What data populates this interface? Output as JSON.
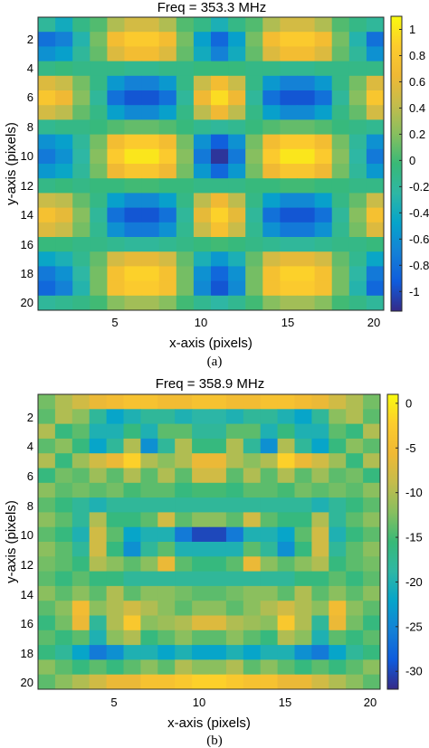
{
  "chart_data": [
    {
      "type": "heatmap",
      "title": "Freq = 353.3 MHz",
      "xlabel": "x-axis (pixels)",
      "ylabel": "y-axis (pixels)",
      "caption": "(a)",
      "xlim": [
        0.5,
        20.5
      ],
      "ylim": [
        0.5,
        20.5
      ],
      "xticks": [
        "5",
        "10",
        "15",
        "20"
      ],
      "yticks": [
        "2",
        "4",
        "6",
        "8",
        "10",
        "12",
        "14",
        "16",
        "18",
        "20"
      ],
      "colorbar": {
        "range": [
          -1.15,
          1.1
        ],
        "ticks": [
          "1",
          "0.8",
          "0.6",
          "0.4",
          "0.2",
          "0",
          "-0.2",
          "-0.4",
          "-0.6",
          "-0.8",
          "-1"
        ]
      },
      "colormap": "parula",
      "values": [
        [
          -0.2,
          -0.4,
          -0.1,
          0.05,
          0.35,
          0.5,
          0.5,
          0.35,
          0.05,
          -0.1,
          -0.35,
          -0.1,
          0.05,
          0.35,
          0.5,
          0.5,
          0.35,
          0.05,
          -0.1,
          -0.2
        ],
        [
          -0.8,
          -0.7,
          -0.3,
          0.15,
          0.7,
          0.85,
          0.85,
          0.7,
          0.15,
          -0.5,
          -0.85,
          -0.5,
          0.15,
          0.7,
          0.85,
          0.85,
          0.7,
          0.15,
          -0.3,
          -0.8
        ],
        [
          -0.6,
          -0.5,
          -0.2,
          0.1,
          0.55,
          0.7,
          0.7,
          0.55,
          0.1,
          -0.4,
          -0.7,
          -0.4,
          0.1,
          0.55,
          0.7,
          0.7,
          0.55,
          0.1,
          -0.2,
          -0.6
        ],
        [
          -0.1,
          -0.05,
          -0.1,
          -0.1,
          -0.1,
          -0.15,
          -0.15,
          -0.1,
          -0.1,
          -0.05,
          -0.05,
          -0.05,
          -0.1,
          -0.1,
          -0.15,
          -0.15,
          -0.1,
          -0.1,
          -0.1,
          -0.1
        ],
        [
          0.55,
          0.45,
          0.15,
          -0.1,
          -0.55,
          -0.7,
          -0.7,
          -0.55,
          -0.1,
          0.45,
          0.7,
          0.45,
          -0.1,
          -0.55,
          -0.7,
          -0.7,
          -0.55,
          -0.1,
          0.15,
          0.55
        ],
        [
          0.8,
          0.65,
          0.2,
          -0.2,
          -0.8,
          -0.95,
          -0.95,
          -0.8,
          -0.2,
          0.65,
          0.95,
          0.65,
          -0.2,
          -0.8,
          -0.95,
          -0.95,
          -0.8,
          -0.2,
          0.2,
          0.8
        ],
        [
          0.5,
          0.4,
          0.1,
          -0.1,
          -0.5,
          -0.65,
          -0.65,
          -0.5,
          -0.1,
          0.4,
          0.65,
          0.4,
          -0.1,
          -0.5,
          -0.65,
          -0.65,
          -0.5,
          -0.1,
          0.1,
          0.5
        ],
        [
          -0.15,
          -0.1,
          -0.1,
          -0.05,
          0.05,
          0.1,
          0.1,
          0.05,
          -0.05,
          -0.15,
          -0.2,
          -0.15,
          -0.05,
          0.05,
          0.1,
          0.1,
          0.05,
          -0.05,
          -0.1,
          -0.15
        ],
        [
          -0.6,
          -0.5,
          -0.2,
          0.15,
          0.7,
          0.85,
          0.85,
          0.7,
          0.15,
          -0.6,
          -0.9,
          -0.6,
          0.15,
          0.7,
          0.85,
          0.85,
          0.7,
          0.15,
          -0.2,
          -0.6
        ],
        [
          -0.75,
          -0.6,
          -0.25,
          0.2,
          0.85,
          1.0,
          1.0,
          0.85,
          0.2,
          -0.75,
          -1.1,
          -0.75,
          0.2,
          0.85,
          1.0,
          1.0,
          0.85,
          0.2,
          -0.25,
          -0.75
        ],
        [
          -0.55,
          -0.45,
          -0.2,
          0.15,
          0.65,
          0.8,
          0.8,
          0.65,
          0.15,
          -0.55,
          -0.85,
          -0.55,
          0.15,
          0.65,
          0.8,
          0.8,
          0.65,
          0.15,
          -0.2,
          -0.55
        ],
        [
          -0.1,
          -0.05,
          -0.1,
          -0.05,
          -0.05,
          0.0,
          0.0,
          -0.05,
          -0.05,
          -0.1,
          -0.1,
          -0.1,
          -0.05,
          -0.05,
          0.0,
          0.0,
          -0.05,
          -0.05,
          -0.1,
          -0.1
        ],
        [
          0.45,
          0.4,
          0.1,
          -0.1,
          -0.5,
          -0.65,
          -0.65,
          -0.5,
          -0.1,
          0.4,
          0.65,
          0.4,
          -0.1,
          -0.5,
          -0.65,
          -0.65,
          -0.5,
          -0.1,
          0.1,
          0.45
        ],
        [
          0.75,
          0.6,
          0.2,
          -0.2,
          -0.8,
          -0.95,
          -0.95,
          -0.8,
          -0.2,
          0.6,
          0.9,
          0.6,
          -0.2,
          -0.8,
          -0.95,
          -0.95,
          -0.8,
          -0.2,
          0.2,
          0.75
        ],
        [
          0.55,
          0.45,
          0.15,
          -0.15,
          -0.6,
          -0.75,
          -0.75,
          -0.6,
          -0.15,
          0.45,
          0.75,
          0.45,
          -0.15,
          -0.6,
          -0.75,
          -0.75,
          -0.6,
          -0.15,
          0.15,
          0.55
        ],
        [
          -0.05,
          -0.05,
          -0.1,
          -0.1,
          -0.15,
          -0.2,
          -0.2,
          -0.15,
          -0.1,
          -0.05,
          0.0,
          -0.05,
          -0.1,
          -0.15,
          -0.2,
          -0.2,
          -0.15,
          -0.1,
          -0.1,
          -0.05
        ],
        [
          -0.45,
          -0.35,
          -0.15,
          0.1,
          0.5,
          0.6,
          0.6,
          0.5,
          0.1,
          -0.35,
          -0.55,
          -0.35,
          0.1,
          0.5,
          0.6,
          0.6,
          0.5,
          0.1,
          -0.15,
          -0.45
        ],
        [
          -0.75,
          -0.6,
          -0.25,
          0.15,
          0.75,
          0.9,
          0.9,
          0.75,
          0.15,
          -0.6,
          -0.85,
          -0.6,
          0.15,
          0.75,
          0.9,
          0.9,
          0.75,
          0.15,
          -0.25,
          -0.75
        ],
        [
          -0.85,
          -0.7,
          -0.3,
          0.15,
          0.75,
          0.85,
          0.85,
          0.75,
          0.15,
          -0.65,
          -0.95,
          -0.65,
          0.15,
          0.75,
          0.85,
          0.85,
          0.75,
          0.15,
          -0.3,
          -0.85
        ],
        [
          -0.2,
          -0.15,
          -0.1,
          0.0,
          0.2,
          0.3,
          0.3,
          0.2,
          0.0,
          -0.15,
          -0.25,
          -0.15,
          0.0,
          0.2,
          0.3,
          0.3,
          0.2,
          0.0,
          -0.1,
          -0.2
        ]
      ]
    },
    {
      "type": "heatmap",
      "title": "Freq = 358.9 MHz",
      "xlabel": "x-axis (pixels)",
      "ylabel": "y-axis (pixels)",
      "caption": "(b)",
      "xlim": [
        0.5,
        20.5
      ],
      "ylim": [
        0.5,
        20.5
      ],
      "xticks": [
        "5",
        "10",
        "15",
        "20"
      ],
      "yticks": [
        "2",
        "4",
        "6",
        "8",
        "10",
        "12",
        "14",
        "16",
        "18",
        "20"
      ],
      "colorbar": {
        "range": [
          -32,
          1
        ],
        "ticks": [
          "0",
          "-5",
          "-10",
          "-15",
          "-20",
          "-25",
          "-30"
        ]
      },
      "colormap": "parula",
      "values": [
        [
          -13,
          -10,
          -8,
          -6,
          -5,
          -4,
          -4,
          -5,
          -5,
          -4,
          -4,
          -5,
          -5,
          -4,
          -4,
          -5,
          -6,
          -8,
          -10,
          -13
        ],
        [
          -14,
          -10,
          -12,
          -18,
          -22,
          -20,
          -18,
          -18,
          -20,
          -19,
          -19,
          -20,
          -18,
          -18,
          -20,
          -22,
          -18,
          -12,
          -10,
          -14
        ],
        [
          -10,
          -16,
          -14,
          -20,
          -20,
          -16,
          -20,
          -14,
          -14,
          -18,
          -18,
          -14,
          -14,
          -20,
          -16,
          -20,
          -20,
          -14,
          -16,
          -10
        ],
        [
          -14,
          -12,
          -16,
          -22,
          -18,
          -10,
          -24,
          -18,
          -10,
          -16,
          -16,
          -10,
          -18,
          -24,
          -10,
          -18,
          -22,
          -16,
          -12,
          -14
        ],
        [
          -10,
          -16,
          -11,
          -8,
          -6,
          -2,
          -10,
          -12,
          -10,
          -6,
          -6,
          -10,
          -12,
          -10,
          -2,
          -6,
          -8,
          -11,
          -16,
          -10
        ],
        [
          -16,
          -13,
          -14,
          -11,
          -14,
          -10,
          -14,
          -10,
          -14,
          -8,
          -8,
          -14,
          -10,
          -14,
          -10,
          -14,
          -11,
          -14,
          -13,
          -16
        ],
        [
          -12,
          -14,
          -13,
          -14,
          -13,
          -15,
          -14,
          -14,
          -16,
          -15,
          -15,
          -16,
          -14,
          -14,
          -15,
          -13,
          -14,
          -13,
          -14,
          -12
        ],
        [
          -14,
          -16,
          -18,
          -20,
          -18,
          -18,
          -18,
          -18,
          -18,
          -18,
          -18,
          -18,
          -18,
          -18,
          -18,
          -18,
          -20,
          -18,
          -16,
          -14
        ],
        [
          -12,
          -14,
          -18,
          -10,
          -16,
          -16,
          -14,
          -8,
          -14,
          -12,
          -12,
          -14,
          -8,
          -14,
          -16,
          -16,
          -10,
          -18,
          -14,
          -12
        ],
        [
          -14,
          -16,
          -20,
          -8,
          -14,
          -22,
          -20,
          -20,
          -26,
          -30,
          -30,
          -26,
          -20,
          -20,
          -22,
          -14,
          -8,
          -20,
          -16,
          -14
        ],
        [
          -12,
          -14,
          -18,
          -8,
          -16,
          -24,
          -18,
          -14,
          -20,
          -20,
          -20,
          -20,
          -14,
          -18,
          -24,
          -16,
          -8,
          -18,
          -14,
          -12
        ],
        [
          -13,
          -14,
          -16,
          -10,
          -12,
          -14,
          -12,
          -6,
          -14,
          -16,
          -16,
          -14,
          -6,
          -12,
          -14,
          -12,
          -10,
          -16,
          -14,
          -13
        ],
        [
          -14,
          -16,
          -14,
          -16,
          -16,
          -18,
          -18,
          -18,
          -18,
          -18,
          -18,
          -18,
          -18,
          -18,
          -18,
          -16,
          -16,
          -14,
          -16,
          -14
        ],
        [
          -12,
          -14,
          -12,
          -14,
          -10,
          -14,
          -12,
          -12,
          -13,
          -14,
          -14,
          -13,
          -12,
          -12,
          -14,
          -10,
          -14,
          -12,
          -14,
          -12
        ],
        [
          -14,
          -12,
          -5,
          -12,
          -10,
          -8,
          -10,
          -12,
          -14,
          -12,
          -12,
          -14,
          -12,
          -10,
          -8,
          -10,
          -12,
          -5,
          -12,
          -14
        ],
        [
          -16,
          -13,
          -6,
          -18,
          -10,
          -3,
          -12,
          -11,
          -10,
          -7,
          -7,
          -10,
          -11,
          -12,
          -3,
          -10,
          -18,
          -6,
          -13,
          -16
        ],
        [
          -14,
          -16,
          -14,
          -20,
          -12,
          -10,
          -16,
          -14,
          -12,
          -14,
          -14,
          -12,
          -14,
          -16,
          -10,
          -12,
          -20,
          -14,
          -16,
          -14
        ],
        [
          -16,
          -18,
          -22,
          -26,
          -24,
          -20,
          -20,
          -22,
          -20,
          -22,
          -22,
          -20,
          -22,
          -20,
          -20,
          -24,
          -26,
          -22,
          -18,
          -16
        ],
        [
          -12,
          -14,
          -16,
          -14,
          -16,
          -14,
          -12,
          -14,
          -10,
          -12,
          -12,
          -10,
          -14,
          -12,
          -14,
          -16,
          -14,
          -16,
          -14,
          -12
        ],
        [
          -14,
          -12,
          -10,
          -8,
          -6,
          -6,
          -4,
          -4,
          -3,
          -2,
          -2,
          -3,
          -4,
          -4,
          -6,
          -6,
          -8,
          -10,
          -12,
          -14
        ]
      ]
    }
  ]
}
